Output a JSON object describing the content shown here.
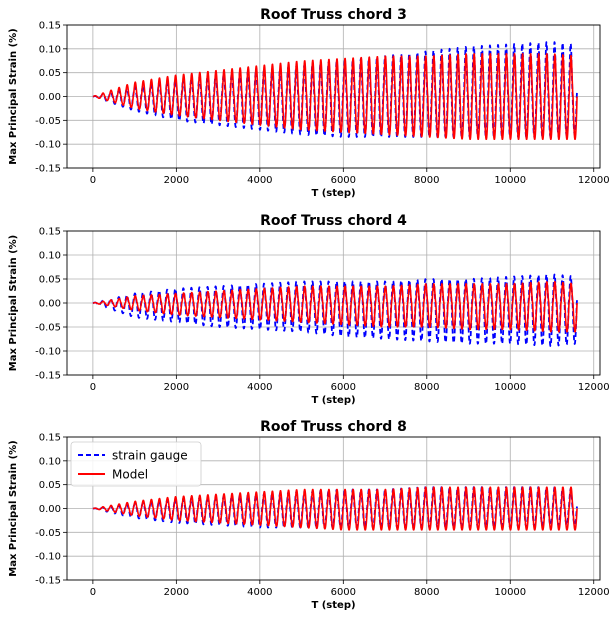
{
  "chart_data": [
    {
      "type": "line",
      "title": "Roof Truss chord 3",
      "xlabel": "T (step)",
      "ylabel": "Max Principal Strain (%)",
      "xlim": [
        -620,
        12150
      ],
      "ylim": [
        -0.15,
        0.15
      ],
      "xticks": [
        0,
        2000,
        4000,
        6000,
        8000,
        10000,
        12000
      ],
      "yticks": [
        -0.15,
        -0.1,
        -0.05,
        0.0,
        0.05,
        0.1,
        0.15
      ],
      "grid": true,
      "legend": false,
      "x_range": [
        0,
        11600
      ],
      "cycles": 60,
      "series": [
        {
          "name": "strain gauge",
          "color": "#0000ff",
          "style": "dashed",
          "envelope_x": [
            0,
            1000,
            2000,
            3000,
            4000,
            5000,
            6000,
            7000,
            8000,
            9000,
            10000,
            11000,
            11600
          ],
          "envelope_upper": [
            0.0,
            0.02,
            0.035,
            0.045,
            0.055,
            0.065,
            0.075,
            0.085,
            0.095,
            0.105,
            0.11,
            0.115,
            0.11
          ],
          "envelope_lower": [
            0.0,
            -0.03,
            -0.05,
            -0.06,
            -0.07,
            -0.08,
            -0.085,
            -0.085,
            -0.085,
            -0.085,
            -0.085,
            -0.085,
            -0.08
          ]
        },
        {
          "name": "Model",
          "color": "#ff0000",
          "style": "solid",
          "envelope_x": [
            0,
            1000,
            2000,
            3000,
            4000,
            5000,
            6000,
            7000,
            8000,
            9000,
            10000,
            11000,
            11600
          ],
          "envelope_upper": [
            0.0,
            0.03,
            0.045,
            0.055,
            0.065,
            0.075,
            0.08,
            0.085,
            0.085,
            0.09,
            0.09,
            0.09,
            0.085
          ],
          "envelope_lower": [
            0.0,
            -0.025,
            -0.04,
            -0.05,
            -0.06,
            -0.07,
            -0.075,
            -0.08,
            -0.085,
            -0.09,
            -0.09,
            -0.09,
            -0.09
          ]
        }
      ]
    },
    {
      "type": "line",
      "title": "Roof Truss chord 4",
      "xlabel": "T (step)",
      "ylabel": "Max Principal Strain (%)",
      "xlim": [
        -620,
        12150
      ],
      "ylim": [
        -0.15,
        0.15
      ],
      "xticks": [
        0,
        2000,
        4000,
        6000,
        8000,
        10000,
        12000
      ],
      "yticks": [
        -0.15,
        -0.1,
        -0.05,
        0.0,
        0.05,
        0.1,
        0.15
      ],
      "grid": true,
      "legend": false,
      "x_range": [
        0,
        11600
      ],
      "cycles": 60,
      "series": [
        {
          "name": "strain gauge",
          "color": "#0000ff",
          "style": "dashed",
          "envelope_x": [
            0,
            1000,
            2000,
            3000,
            4000,
            5000,
            6000,
            7000,
            8000,
            9000,
            10000,
            11000,
            11600
          ],
          "envelope_upper": [
            0.0,
            0.02,
            0.03,
            0.035,
            0.04,
            0.045,
            0.045,
            0.045,
            0.05,
            0.05,
            0.055,
            0.06,
            0.055
          ],
          "envelope_lower": [
            0.0,
            -0.03,
            -0.04,
            -0.05,
            -0.055,
            -0.06,
            -0.07,
            -0.075,
            -0.08,
            -0.085,
            -0.085,
            -0.09,
            -0.085
          ]
        },
        {
          "name": "Model",
          "color": "#ff0000",
          "style": "solid",
          "envelope_x": [
            0,
            1000,
            2000,
            3000,
            4000,
            5000,
            6000,
            7000,
            8000,
            9000,
            10000,
            11000,
            11600
          ],
          "envelope_upper": [
            0.0,
            0.015,
            0.02,
            0.025,
            0.03,
            0.035,
            0.035,
            0.035,
            0.04,
            0.04,
            0.04,
            0.045,
            0.04
          ],
          "envelope_lower": [
            0.0,
            -0.015,
            -0.025,
            -0.03,
            -0.035,
            -0.04,
            -0.045,
            -0.05,
            -0.05,
            -0.055,
            -0.055,
            -0.06,
            -0.06
          ]
        }
      ]
    },
    {
      "type": "line",
      "title": "Roof Truss chord 8",
      "xlabel": "T (step)",
      "ylabel": "Max Principal Strain (%)",
      "xlim": [
        -620,
        12150
      ],
      "ylim": [
        -0.15,
        0.15
      ],
      "xticks": [
        0,
        2000,
        4000,
        6000,
        8000,
        10000,
        12000
      ],
      "yticks": [
        -0.15,
        -0.1,
        -0.05,
        0.0,
        0.05,
        0.1,
        0.15
      ],
      "grid": true,
      "legend": true,
      "legend_position": "upper-left",
      "x_range": [
        0,
        11600
      ],
      "cycles": 60,
      "series": [
        {
          "name": "strain gauge",
          "color": "#0000ff",
          "style": "dashed",
          "envelope_x": [
            0,
            1000,
            2000,
            3000,
            4000,
            5000,
            6000,
            7000,
            8000,
            9000,
            10000,
            11000,
            11600
          ],
          "envelope_upper": [
            0.0,
            0.01,
            0.02,
            0.025,
            0.03,
            0.035,
            0.04,
            0.04,
            0.045,
            0.045,
            0.045,
            0.045,
            0.04
          ],
          "envelope_lower": [
            0.0,
            -0.02,
            -0.03,
            -0.035,
            -0.04,
            -0.04,
            -0.04,
            -0.04,
            -0.04,
            -0.04,
            -0.04,
            -0.035,
            -0.035
          ]
        },
        {
          "name": "Model",
          "color": "#ff0000",
          "style": "solid",
          "envelope_x": [
            0,
            1000,
            2000,
            3000,
            4000,
            5000,
            6000,
            7000,
            8000,
            9000,
            10000,
            11000,
            11600
          ],
          "envelope_upper": [
            0.0,
            0.015,
            0.025,
            0.03,
            0.035,
            0.04,
            0.04,
            0.04,
            0.045,
            0.045,
            0.045,
            0.045,
            0.045
          ],
          "envelope_lower": [
            0.0,
            -0.015,
            -0.025,
            -0.03,
            -0.035,
            -0.04,
            -0.045,
            -0.045,
            -0.045,
            -0.045,
            -0.045,
            -0.045,
            -0.045
          ]
        }
      ]
    }
  ]
}
